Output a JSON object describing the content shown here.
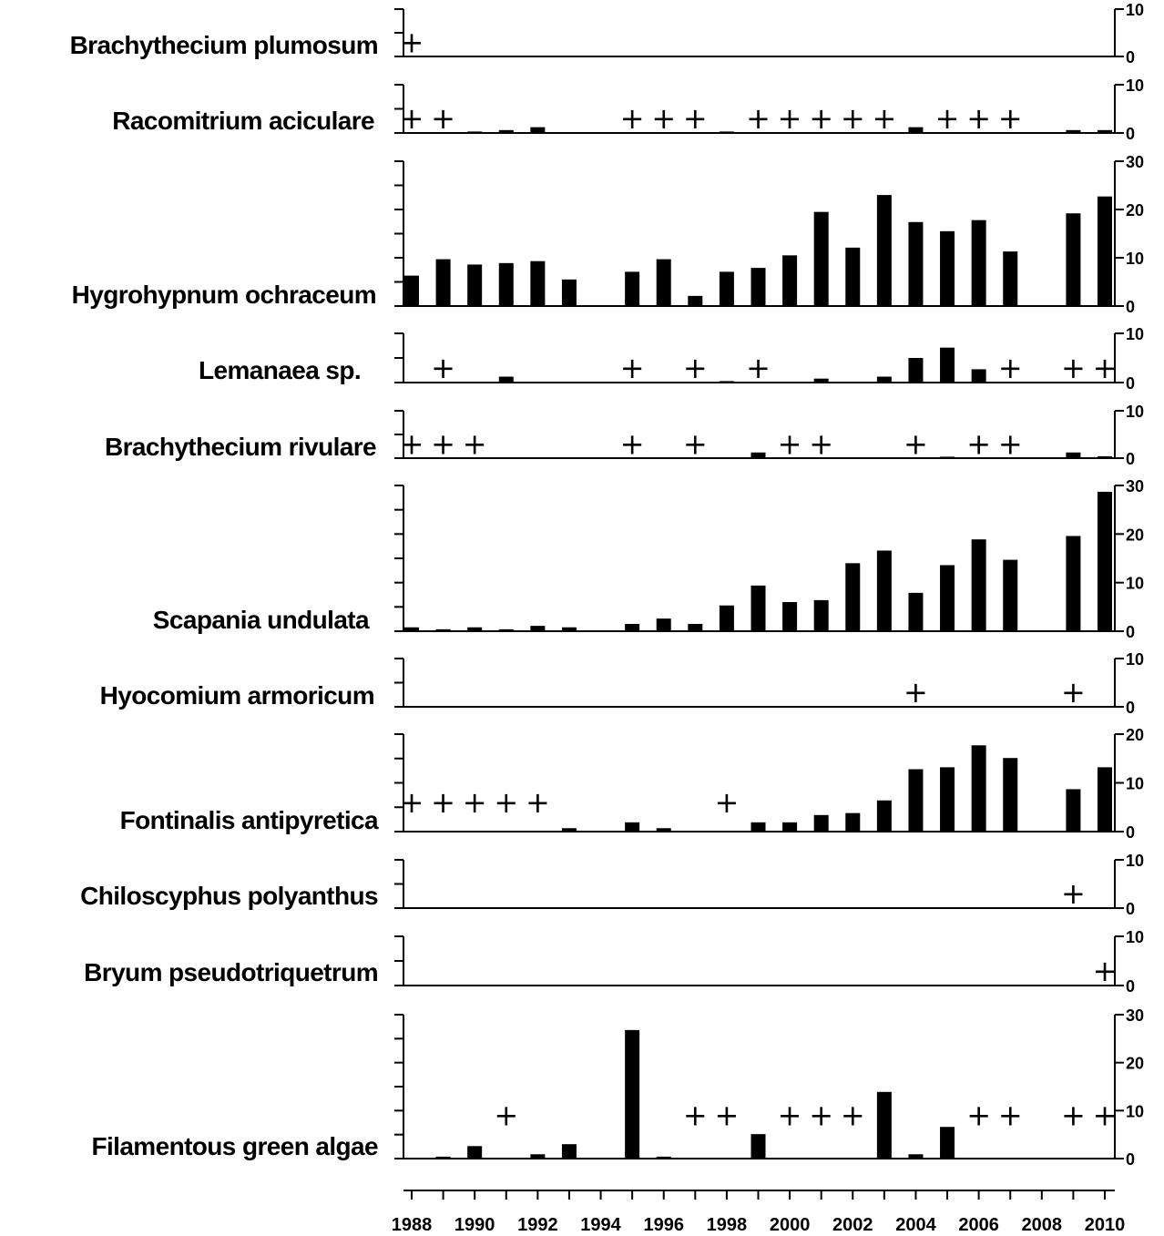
{
  "chart_data": {
    "type": "bar",
    "x_range": [
      1988,
      2010
    ],
    "x_ticks": [
      "1988",
      "1990",
      "1992",
      "1994",
      "1996",
      "1998",
      "2000",
      "2002",
      "2004",
      "2006",
      "2008",
      "2010"
    ],
    "presence_marker": "+",
    "panels": [
      {
        "name": "Brachythecium plumosum",
        "ylim": [
          0,
          10
        ],
        "yticks": [
          "10",
          "0"
        ],
        "values": [],
        "plus": [
          1988
        ]
      },
      {
        "name": "Racomitrium aciculare",
        "ylim": [
          0,
          10
        ],
        "yticks": [
          "10",
          "0"
        ],
        "values": [
          [
            1990,
            0.3
          ],
          [
            1991,
            0.6
          ],
          [
            1992,
            1.2
          ],
          [
            1998,
            0.3
          ],
          [
            2004,
            1.2
          ],
          [
            2009,
            0.6
          ],
          [
            2010,
            0.6
          ]
        ],
        "plus": [
          1988,
          1989,
          1995,
          1996,
          1997,
          1999,
          2000,
          2001,
          2002,
          2003,
          2005,
          2006,
          2007
        ]
      },
      {
        "name": "Hygrohypnum ochraceum",
        "ylim": [
          0,
          30
        ],
        "yticks": [
          "30",
          "20",
          "10",
          "0"
        ],
        "values": [
          [
            1988,
            6.3
          ],
          [
            1989,
            9.7
          ],
          [
            1990,
            8.6
          ],
          [
            1991,
            8.9
          ],
          [
            1992,
            9.3
          ],
          [
            1993,
            5.5
          ],
          [
            1995,
            7.1
          ],
          [
            1996,
            9.7
          ],
          [
            1997,
            2.1
          ],
          [
            1998,
            7.1
          ],
          [
            1999,
            7.9
          ],
          [
            2000,
            10.5
          ],
          [
            2001,
            19.5
          ],
          [
            2002,
            12.1
          ],
          [
            2003,
            23.0
          ],
          [
            2004,
            17.4
          ],
          [
            2005,
            15.5
          ],
          [
            2006,
            17.8
          ],
          [
            2007,
            11.3
          ],
          [
            2009,
            19.2
          ],
          [
            2010,
            22.7
          ]
        ],
        "plus": []
      },
      {
        "name": "Lemanaea sp.",
        "ylim": [
          0,
          10
        ],
        "yticks": [
          "10",
          "0"
        ],
        "values": [
          [
            1991,
            1.2
          ],
          [
            1998,
            0.3
          ],
          [
            2001,
            0.8
          ],
          [
            2003,
            1.2
          ],
          [
            2004,
            5.0
          ],
          [
            2005,
            7.1
          ],
          [
            2006,
            2.7
          ]
        ],
        "plus": [
          1989,
          1995,
          1997,
          1999,
          2007,
          2009,
          2010
        ]
      },
      {
        "name": "Brachythecium rivulare",
        "ylim": [
          0,
          10
        ],
        "yticks": [
          "10",
          "0"
        ],
        "values": [
          [
            1999,
            1.2
          ],
          [
            2005,
            0.3
          ],
          [
            2009,
            1.2
          ],
          [
            2010,
            0.4
          ]
        ],
        "plus": [
          1988,
          1989,
          1990,
          1995,
          1997,
          2000,
          2001,
          2004,
          2006,
          2007
        ]
      },
      {
        "name": "Scapania undulata",
        "ylim": [
          0,
          30
        ],
        "yticks": [
          "30",
          "20",
          "10",
          "0"
        ],
        "values": [
          [
            1988,
            0.8
          ],
          [
            1989,
            0.4
          ],
          [
            1990,
            0.8
          ],
          [
            1991,
            0.4
          ],
          [
            1992,
            1.1
          ],
          [
            1993,
            0.8
          ],
          [
            1995,
            1.5
          ],
          [
            1996,
            2.6
          ],
          [
            1997,
            1.5
          ],
          [
            1998,
            5.3
          ],
          [
            1999,
            9.4
          ],
          [
            2000,
            6.0
          ],
          [
            2001,
            6.4
          ],
          [
            2002,
            14.0
          ],
          [
            2003,
            16.6
          ],
          [
            2004,
            7.9
          ],
          [
            2005,
            13.6
          ],
          [
            2006,
            18.9
          ],
          [
            2007,
            14.7
          ],
          [
            2009,
            19.6
          ],
          [
            2010,
            28.7
          ]
        ],
        "plus": []
      },
      {
        "name": "Hyocomium armoricum",
        "ylim": [
          0,
          10
        ],
        "yticks": [
          "10",
          "0"
        ],
        "values": [],
        "plus": [
          2004,
          2009
        ]
      },
      {
        "name": "Fontinalis antipyretica",
        "ylim": [
          0,
          20
        ],
        "yticks": [
          "20",
          "10",
          "0"
        ],
        "values": [
          [
            1993,
            0.7
          ],
          [
            1995,
            1.9
          ],
          [
            1996,
            0.7
          ],
          [
            1999,
            1.9
          ],
          [
            2000,
            1.9
          ],
          [
            2001,
            3.4
          ],
          [
            2002,
            3.8
          ],
          [
            2003,
            6.4
          ],
          [
            2004,
            12.8
          ],
          [
            2005,
            13.2
          ],
          [
            2006,
            17.7
          ],
          [
            2007,
            15.1
          ],
          [
            2009,
            8.7
          ],
          [
            2010,
            13.2
          ]
        ],
        "plus": [
          1988,
          1989,
          1990,
          1991,
          1992,
          1998
        ]
      },
      {
        "name": "Chiloscyphus polyanthus",
        "ylim": [
          0,
          10
        ],
        "yticks": [
          "10",
          "0"
        ],
        "values": [],
        "plus": [
          2009
        ]
      },
      {
        "name": "Bryum pseudotriquetrum",
        "ylim": [
          0,
          10
        ],
        "yticks": [
          "10",
          "0"
        ],
        "values": [],
        "plus": [
          2010
        ]
      },
      {
        "name": "Filamentous green algae",
        "ylim": [
          0,
          30
        ],
        "yticks": [
          "30",
          "20",
          "10",
          "0"
        ],
        "values": [
          [
            1989,
            0.4
          ],
          [
            1990,
            2.6
          ],
          [
            1992,
            0.9
          ],
          [
            1993,
            3.0
          ],
          [
            1995,
            26.8
          ],
          [
            1996,
            0.4
          ],
          [
            1999,
            5.1
          ],
          [
            2003,
            13.9
          ],
          [
            2004,
            0.9
          ],
          [
            2005,
            6.6
          ]
        ],
        "plus": [
          1991,
          1997,
          1998,
          2000,
          2001,
          2002,
          2006,
          2007,
          2009,
          2010
        ]
      }
    ]
  }
}
